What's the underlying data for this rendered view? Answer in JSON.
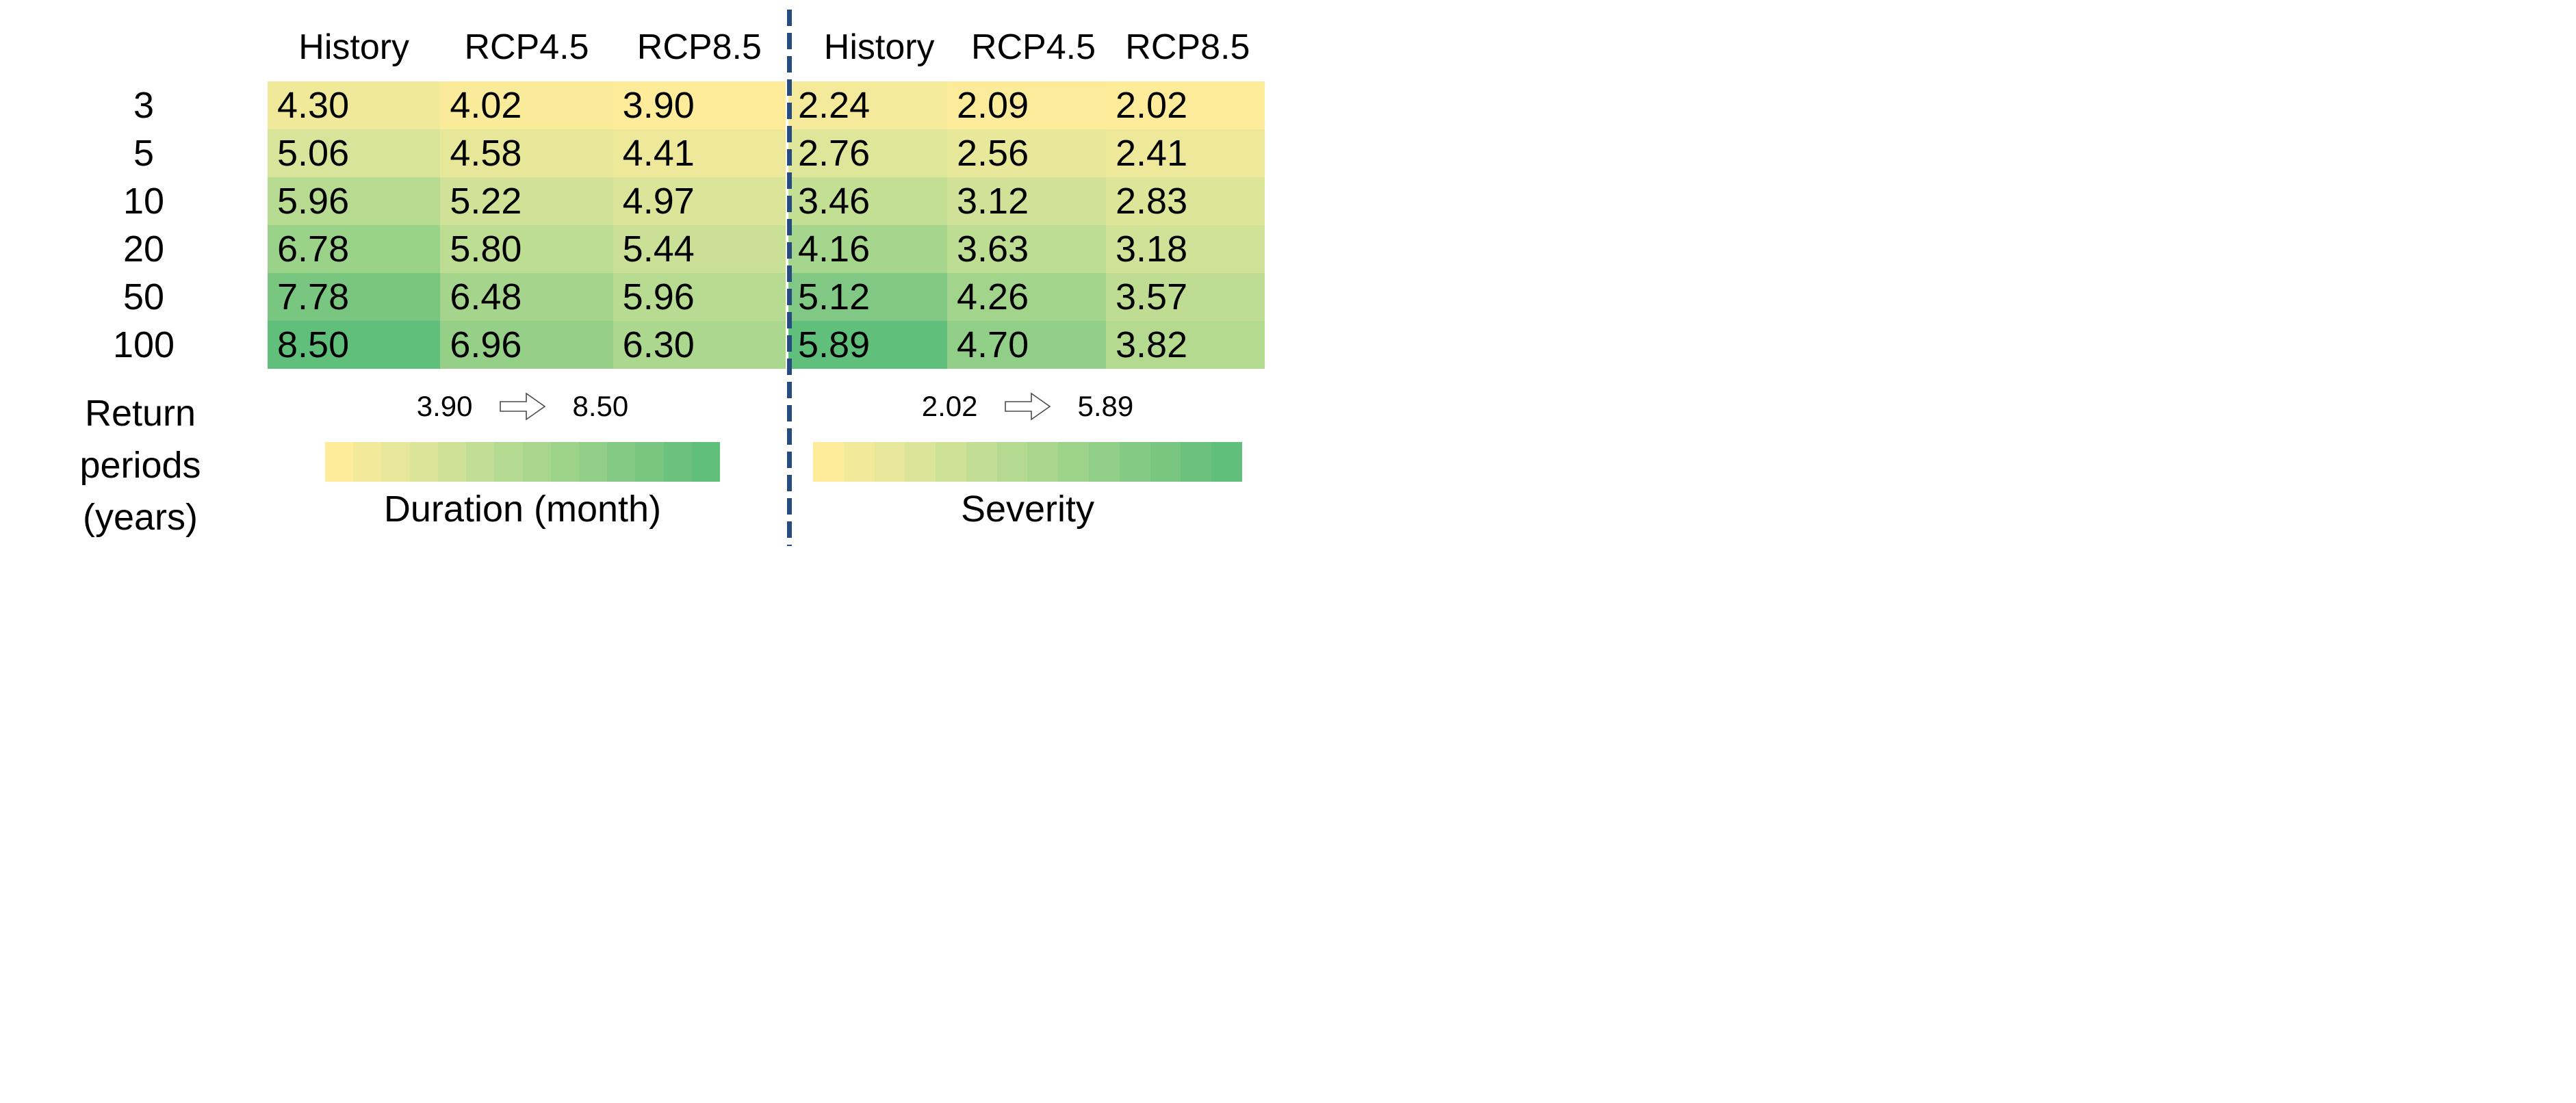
{
  "ui": {
    "row_axis_lines": [
      "Return",
      "periods",
      "(years)"
    ]
  },
  "style": {
    "background": "#FFFFFF",
    "text_color": "#000000",
    "divider_color": "#264B7E",
    "arrow_outline_color": "#4A4A4A",
    "arrow_fill_color": "#FFFFFF"
  },
  "chart_data": {
    "type": "heatmap",
    "columns": [
      "History",
      "RCP4.5",
      "RCP8.5"
    ],
    "row_categories": [
      "3",
      "5",
      "10",
      "20",
      "50",
      "100"
    ],
    "rows_axis_label": "Return periods (years)",
    "legend_position": "bottom",
    "grid": false,
    "colorbar_segments": 14,
    "colormap_stops": [
      {
        "t": 0.0,
        "color": "#FEEC9B"
      },
      {
        "t": 0.25,
        "color": "#D7E499"
      },
      {
        "t": 0.45,
        "color": "#B6DB91"
      },
      {
        "t": 0.84,
        "color": "#7AC681"
      },
      {
        "t": 1.0,
        "color": "#60BF7A"
      }
    ],
    "blocks": [
      {
        "title": "Duration (month)",
        "min": 3.9,
        "max": 8.5,
        "colorbar_min_label": "3.90",
        "colorbar_max_label": "8.50",
        "values": [
          [
            4.3,
            4.02,
            3.9
          ],
          [
            5.06,
            4.58,
            4.41
          ],
          [
            5.96,
            5.22,
            4.97
          ],
          [
            6.78,
            5.8,
            5.44
          ],
          [
            7.78,
            6.48,
            5.96
          ],
          [
            8.5,
            6.96,
            6.3
          ]
        ]
      },
      {
        "title": "Severity",
        "min": 2.02,
        "max": 5.89,
        "colorbar_min_label": "2.02",
        "colorbar_max_label": "5.89",
        "values": [
          [
            2.24,
            2.09,
            2.02
          ],
          [
            2.76,
            2.56,
            2.41
          ],
          [
            3.46,
            3.12,
            2.83
          ],
          [
            4.16,
            3.63,
            3.18
          ],
          [
            5.12,
            4.26,
            3.57
          ],
          [
            5.89,
            4.7,
            3.82
          ]
        ]
      }
    ]
  }
}
